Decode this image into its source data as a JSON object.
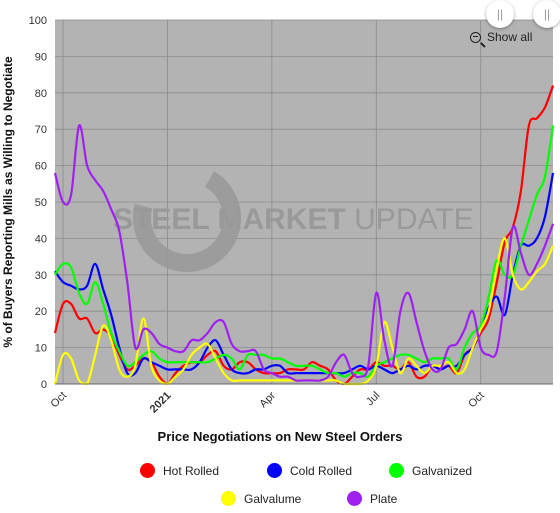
{
  "chart_data": {
    "type": "line",
    "title": "",
    "ylabel": "% of Buyers Reporting Mills as Willing to Negotiate",
    "xlabel": "Price Negotiations on New Steel Orders",
    "ylim": [
      0,
      100
    ],
    "yticks": [
      0,
      10,
      20,
      30,
      40,
      50,
      60,
      70,
      80,
      90,
      100
    ],
    "xticks": [
      {
        "label": "Oct",
        "x": 2
      },
      {
        "label": "2021",
        "x": 28
      },
      {
        "label": "Apr",
        "x": 54
      },
      {
        "label": "Jul",
        "x": 80
      },
      {
        "label": "Oct",
        "x": 106
      }
    ],
    "grid": true,
    "legend_position": "bottom",
    "x": [
      0,
      2,
      4,
      6,
      8,
      10,
      12,
      14,
      16,
      18,
      20,
      22,
      24,
      26,
      28,
      30,
      32,
      34,
      36,
      38,
      40,
      42,
      44,
      46,
      48,
      50,
      52,
      54,
      56,
      58,
      60,
      62,
      64,
      66,
      68,
      70,
      72,
      74,
      76,
      78,
      80,
      82,
      84,
      86,
      88,
      90,
      92,
      94,
      96,
      98,
      100,
      102,
      104,
      106,
      108,
      110,
      112,
      114,
      116,
      118,
      120,
      122,
      124
    ],
    "series": [
      {
        "name": "Hot Rolled",
        "color": "#ff0000",
        "values": [
          14,
          22,
          22,
          18,
          18,
          14,
          15,
          13,
          8,
          4,
          5,
          7,
          6,
          2,
          0,
          3,
          5,
          6,
          6,
          8,
          9,
          5,
          4,
          6,
          6,
          4,
          3,
          3,
          3,
          4,
          4,
          4,
          6,
          5,
          4,
          1,
          0,
          2,
          4,
          4,
          6,
          5,
          5,
          4,
          6,
          2,
          2,
          5,
          4,
          5,
          3,
          8,
          10,
          14,
          18,
          28,
          39,
          43,
          53,
          71,
          73,
          76,
          82
        ]
      },
      {
        "name": "Cold Rolled",
        "color": "#0000ff",
        "values": [
          31,
          28,
          27,
          26,
          27,
          33,
          26,
          19,
          10,
          3,
          3,
          7,
          6,
          5,
          4,
          4,
          4,
          4,
          6,
          10,
          12,
          8,
          4,
          3,
          3,
          4,
          4,
          5,
          5,
          3,
          3,
          3,
          3,
          3,
          3,
          3,
          3,
          4,
          5,
          4,
          5,
          4,
          3,
          4,
          5,
          4,
          5,
          5,
          4,
          5,
          5,
          8,
          10,
          15,
          21,
          24,
          19,
          30,
          38,
          38,
          40,
          46,
          58
        ]
      },
      {
        "name": "Galvanized",
        "color": "#00ff00",
        "values": [
          30,
          33,
          32,
          25,
          22,
          28,
          22,
          14,
          9,
          5,
          6,
          8,
          9,
          7,
          6,
          6,
          6,
          6,
          6,
          6,
          7,
          8,
          7,
          4,
          8,
          8,
          8,
          7,
          7,
          6,
          5,
          5,
          5,
          4,
          3,
          3,
          2,
          3,
          3,
          2,
          5,
          6,
          7,
          8,
          8,
          7,
          6,
          7,
          7,
          7,
          4,
          10,
          14,
          16,
          24,
          34,
          30,
          30,
          38,
          45,
          52,
          57,
          71
        ]
      },
      {
        "name": "Galvalume",
        "color": "#ffff00",
        "values": [
          0,
          8,
          7,
          1,
          0,
          8,
          16,
          12,
          4,
          2,
          5,
          18,
          5,
          1,
          0,
          2,
          4,
          8,
          10,
          11,
          7,
          3,
          1,
          1,
          1,
          1,
          1,
          1,
          1,
          1,
          1,
          1,
          1,
          1,
          1,
          1,
          0,
          0,
          0,
          1,
          5,
          17,
          10,
          3,
          7,
          5,
          3,
          5,
          5,
          6,
          3,
          4,
          10,
          15,
          20,
          32,
          40,
          30,
          26,
          28,
          31,
          33,
          38
        ]
      },
      {
        "name": "Plate",
        "color": "#a020f0",
        "values": [
          58,
          50,
          52,
          71,
          60,
          56,
          53,
          48,
          42,
          28,
          10,
          15,
          14,
          11,
          10,
          9,
          9,
          12,
          12,
          14,
          17,
          17,
          11,
          9,
          9,
          9,
          4,
          3,
          2,
          2,
          1,
          1,
          1,
          1,
          2,
          6,
          8,
          3,
          2,
          5,
          25,
          12,
          5,
          20,
          25,
          17,
          9,
          4,
          4,
          10,
          11,
          15,
          20,
          10,
          8,
          9,
          24,
          43,
          36,
          30,
          33,
          38,
          44
        ]
      }
    ]
  },
  "watermark": {
    "text_bold": "STEEL MARKET",
    "text_light": "UPDATE"
  },
  "controls": {
    "show_all_label": "Show all",
    "handle_left_glyph": "||",
    "handle_right_glyph": "||"
  }
}
